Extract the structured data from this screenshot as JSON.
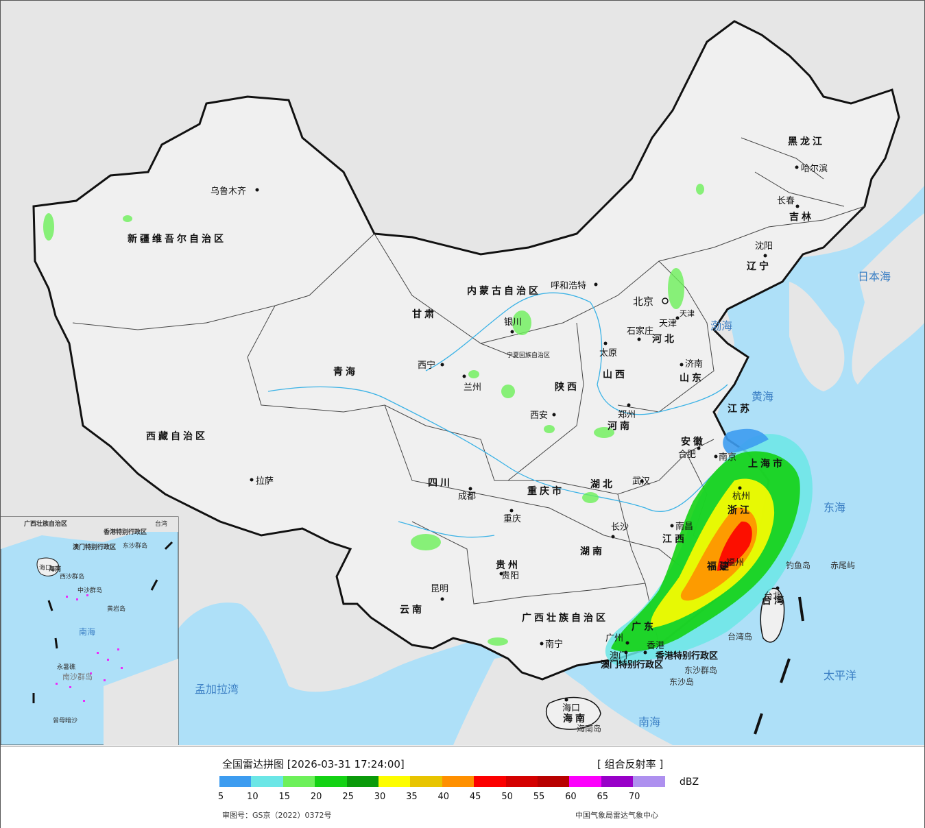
{
  "legend": {
    "title": "全国雷达拼图 [2026-03-31 17:24:00]",
    "product": "[ 组合反射率 ]",
    "unit": "dBZ",
    "ticks": [
      "5",
      "10",
      "15",
      "20",
      "25",
      "30",
      "35",
      "40",
      "45",
      "50",
      "55",
      "60",
      "65",
      "70"
    ],
    "colors": [
      "#3d9cf0",
      "#6be6e6",
      "#6df05a",
      "#14d214",
      "#0a9a0a",
      "#fdfd00",
      "#e8c400",
      "#ff9000",
      "#fc0000",
      "#d40000",
      "#b80000",
      "#fc00fc",
      "#9800c8",
      "#ae90ef"
    ]
  },
  "footer": {
    "approval": "审图号：GS京（2022）0372号",
    "source": "中国气象局雷达气象中心"
  },
  "colors": {
    "ocean": "#aee0f8",
    "land_china": "#f0f0f0",
    "land_foreign": "#e6e6e6",
    "border": "#111111",
    "river": "#3ab2e6"
  },
  "map": {
    "provinces": [
      "新疆维吾尔自治区",
      "西藏自治区",
      "青海",
      "甘肃",
      "内蒙古自治区",
      "黑龙江",
      "吉林",
      "辽宁",
      "河北",
      "山西",
      "陕西",
      "山东",
      "河南",
      "江苏",
      "安徽",
      "湖北",
      "四川",
      "重庆市",
      "贵州",
      "云南",
      "湖南",
      "江西",
      "浙江",
      "福建",
      "广东",
      "广西壮族自治区",
      "海南",
      "宁夏回族自治区",
      "天津",
      "上海市",
      "台湾"
    ],
    "cities": [
      "乌鲁木齐",
      "拉萨",
      "西宁",
      "兰州",
      "银川",
      "呼和浩特",
      "北京",
      "天津",
      "石家庄",
      "太原",
      "济南",
      "郑州",
      "西安",
      "成都",
      "重庆",
      "贵阳",
      "昆明",
      "南宁",
      "长沙",
      "武汉",
      "南昌",
      "合肥",
      "南京",
      "杭州",
      "福州",
      "广州",
      "香港",
      "澳门",
      "海口",
      "沈阳",
      "长春",
      "哈尔滨",
      "台北"
    ],
    "seas": [
      "渤海",
      "黄海",
      "东海",
      "南海",
      "日本海",
      "太平洋",
      "孟加拉湾"
    ],
    "islands": [
      "钓鱼岛",
      "赤尾屿",
      "台湾岛",
      "东沙群岛",
      "东沙岛",
      "海南岛"
    ],
    "sar": [
      "香港特别行政区",
      "澳门特别行政区"
    ],
    "inset": {
      "labels": [
        "广西壮族自治区",
        "海口",
        "海南",
        "香港特别行政区",
        "澳门特别行政区",
        "东沙群岛",
        "台湾",
        "南海",
        "中沙群岛",
        "黄岩岛",
        "西沙群岛",
        "永暑礁",
        "南沙群岛",
        "曾母暗沙"
      ]
    }
  }
}
